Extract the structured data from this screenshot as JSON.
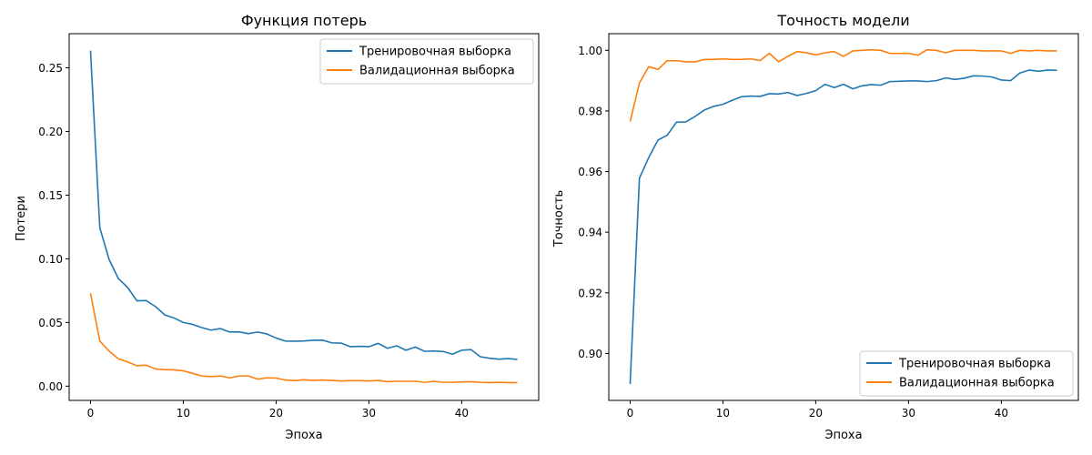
{
  "colors": {
    "train": "#1f77b4",
    "val": "#ff7f0e",
    "axis": "#000000",
    "legend_border": "#cccccc"
  },
  "chart_data": [
    {
      "type": "line",
      "title": "Функция потерь",
      "xlabel": "Эпоха",
      "ylabel": "Потери",
      "xlim": [
        -2.3,
        48.3
      ],
      "ylim": [
        -0.0112,
        0.2768
      ],
      "xticks": [
        0,
        10,
        20,
        30,
        40
      ],
      "yticks": [
        0.0,
        0.05,
        0.1,
        0.15,
        0.2,
        0.25
      ],
      "ytick_labels": [
        "0.00",
        "0.05",
        "0.10",
        "0.15",
        "0.20",
        "0.25"
      ],
      "xtick_labels": [
        "0",
        "10",
        "20",
        "30",
        "40"
      ],
      "legend_position": "upper right",
      "grid": false,
      "series": [
        {
          "name": "Тренировочная выборка",
          "color": "#1f77b4",
          "values": [
            0.2635,
            0.1245,
            0.0995,
            0.0845,
            0.0775,
            0.067,
            0.0672,
            0.0625,
            0.056,
            0.0535,
            0.05,
            0.0485,
            0.046,
            0.044,
            0.0452,
            0.0425,
            0.0426,
            0.0412,
            0.0425,
            0.041,
            0.0378,
            0.0354,
            0.0353,
            0.0355,
            0.036,
            0.0361,
            0.034,
            0.0338,
            0.031,
            0.0313,
            0.031,
            0.0336,
            0.0297,
            0.0317,
            0.0282,
            0.0307,
            0.0273,
            0.0276,
            0.0272,
            0.0251,
            0.0282,
            0.0287,
            0.0231,
            0.0219,
            0.0212,
            0.0216,
            0.021
          ]
        },
        {
          "name": "Валидационная выборка",
          "color": "#ff7f0e",
          "values": [
            0.073,
            0.0355,
            0.0275,
            0.0215,
            0.019,
            0.016,
            0.0165,
            0.0135,
            0.013,
            0.0128,
            0.012,
            0.01,
            0.008,
            0.0075,
            0.008,
            0.0065,
            0.008,
            0.008,
            0.0055,
            0.0065,
            0.0063,
            0.0048,
            0.0043,
            0.005,
            0.0045,
            0.0048,
            0.0045,
            0.004,
            0.0043,
            0.0043,
            0.004,
            0.0045,
            0.0035,
            0.0038,
            0.0038,
            0.0038,
            0.003,
            0.0038,
            0.003,
            0.003,
            0.0033,
            0.0035,
            0.003,
            0.0028,
            0.003,
            0.0028,
            0.0028
          ]
        }
      ]
    },
    {
      "type": "line",
      "title": "Точность модели",
      "xlabel": "Эпоха",
      "ylabel": "Точность",
      "xlim": [
        -2.3,
        48.3
      ],
      "ylim": [
        0.8845,
        1.0055
      ],
      "xticks": [
        0,
        10,
        20,
        30,
        40
      ],
      "yticks": [
        0.9,
        0.92,
        0.94,
        0.96,
        0.98,
        1.0
      ],
      "ytick_labels": [
        "0.90",
        "0.92",
        "0.94",
        "0.96",
        "0.98",
        "1.00"
      ],
      "xtick_labels": [
        "0",
        "10",
        "20",
        "30",
        "40"
      ],
      "legend_position": "lower right",
      "grid": false,
      "series": [
        {
          "name": "Тренировочная выборка",
          "color": "#1f77b4",
          "values": [
            0.8899,
            0.9578,
            0.9646,
            0.9704,
            0.972,
            0.9763,
            0.9764,
            0.9782,
            0.9803,
            0.9815,
            0.9822,
            0.9835,
            0.9847,
            0.9849,
            0.9848,
            0.9857,
            0.9856,
            0.9861,
            0.9851,
            0.9858,
            0.9867,
            0.9888,
            0.9877,
            0.9888,
            0.9873,
            0.9883,
            0.9887,
            0.9885,
            0.9897,
            0.9898,
            0.9899,
            0.9899,
            0.9897,
            0.99,
            0.9909,
            0.9904,
            0.9908,
            0.9916,
            0.9915,
            0.9912,
            0.9902,
            0.99,
            0.9925,
            0.9935,
            0.9931,
            0.9935,
            0.9934
          ]
        },
        {
          "name": "Валидационная выборка",
          "color": "#ff7f0e",
          "values": [
            0.9765,
            0.9892,
            0.9946,
            0.9937,
            0.9966,
            0.9966,
            0.9962,
            0.9962,
            0.997,
            0.997,
            0.9972,
            0.997,
            0.997,
            0.9972,
            0.9966,
            0.999,
            0.9962,
            0.998,
            0.9996,
            0.9992,
            0.9985,
            0.9992,
            0.9996,
            0.998,
            0.9998,
            1.0,
            1.0002,
            1.0,
            0.999,
            0.999,
            0.999,
            0.9984,
            1.0002,
            1.0,
            0.9992,
            1.0,
            1.0,
            1.0,
            0.9998,
            0.9998,
            0.9998,
            0.999,
            1.0,
            0.9998,
            1.0,
            0.9998,
            0.9998
          ]
        }
      ]
    }
  ]
}
